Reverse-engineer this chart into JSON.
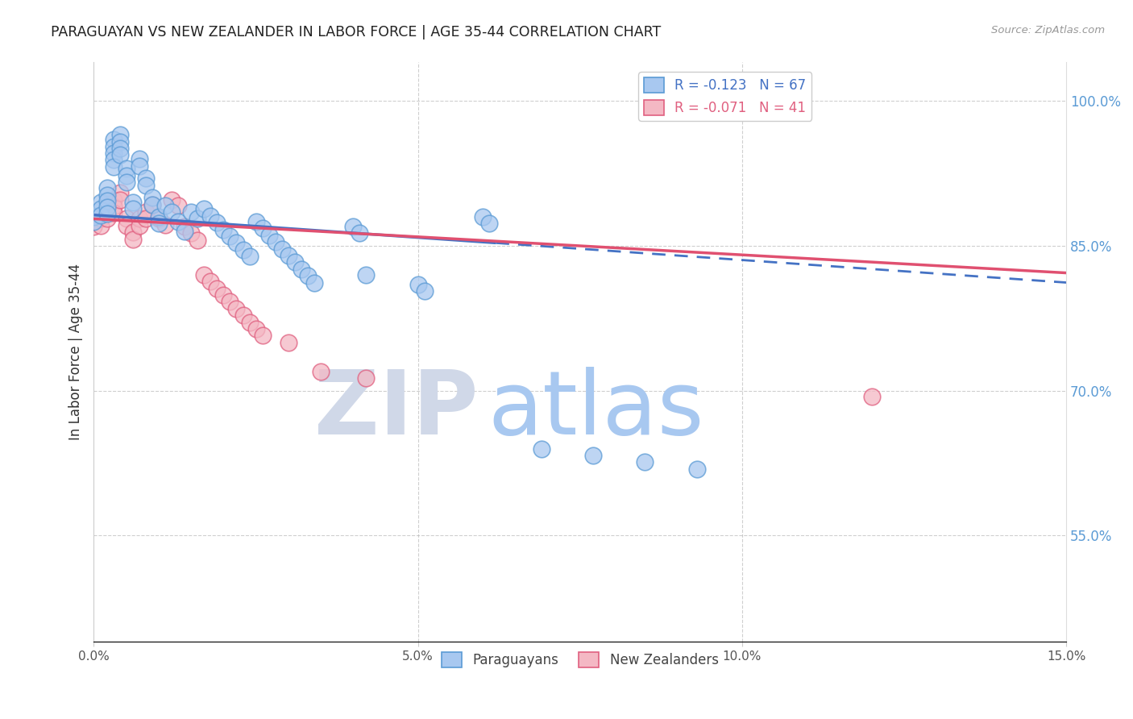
{
  "title": "PARAGUAYAN VS NEW ZEALANDER IN LABOR FORCE | AGE 35-44 CORRELATION CHART",
  "source": "Source: ZipAtlas.com",
  "ylabel": "In Labor Force | Age 35-44",
  "xlim": [
    0.0,
    0.15
  ],
  "ylim": [
    0.44,
    1.04
  ],
  "blue_fill": "#a8c8f0",
  "blue_edge": "#5b9bd5",
  "pink_fill": "#f4b8c4",
  "pink_edge": "#e06080",
  "blue_line_color": "#4472c4",
  "pink_line_color": "#e05070",
  "right_tick_color": "#5b9bd5",
  "grid_color": "#bbbbbb",
  "watermark_zip_color": "#d0d8e8",
  "watermark_atlas_color": "#a8c8f0",
  "legend_r_blue": "R = -0.123",
  "legend_n_blue": "N = 67",
  "legend_r_pink": "R = -0.071",
  "legend_n_pink": "N = 41",
  "blue_scatter_x": [
    0.0,
    0.0,
    0.001,
    0.001,
    0.001,
    0.002,
    0.002,
    0.002,
    0.002,
    0.002,
    0.003,
    0.003,
    0.003,
    0.003,
    0.003,
    0.004,
    0.004,
    0.004,
    0.004,
    0.005,
    0.005,
    0.005,
    0.006,
    0.006,
    0.007,
    0.007,
    0.008,
    0.008,
    0.009,
    0.009,
    0.01,
    0.01,
    0.011,
    0.012,
    0.013,
    0.014,
    0.015,
    0.016,
    0.017,
    0.018,
    0.019,
    0.02,
    0.021,
    0.022,
    0.023,
    0.024,
    0.025,
    0.026,
    0.027,
    0.028,
    0.029,
    0.03,
    0.031,
    0.032,
    0.033,
    0.034,
    0.04,
    0.041,
    0.042,
    0.05,
    0.051,
    0.06,
    0.061,
    0.069,
    0.077,
    0.085,
    0.093
  ],
  "blue_scatter_y": [
    0.88,
    0.875,
    0.895,
    0.888,
    0.882,
    0.91,
    0.903,
    0.897,
    0.89,
    0.883,
    0.96,
    0.953,
    0.946,
    0.939,
    0.932,
    0.965,
    0.958,
    0.951,
    0.944,
    0.93,
    0.923,
    0.916,
    0.895,
    0.888,
    0.94,
    0.933,
    0.92,
    0.913,
    0.9,
    0.893,
    0.88,
    0.873,
    0.892,
    0.885,
    0.875,
    0.865,
    0.885,
    0.878,
    0.888,
    0.881,
    0.874,
    0.867,
    0.86,
    0.853,
    0.846,
    0.839,
    0.875,
    0.868,
    0.861,
    0.854,
    0.847,
    0.84,
    0.833,
    0.826,
    0.819,
    0.812,
    0.87,
    0.863,
    0.82,
    0.81,
    0.803,
    0.88,
    0.873,
    0.64,
    0.633,
    0.626,
    0.619
  ],
  "pink_scatter_x": [
    0.0,
    0.001,
    0.001,
    0.002,
    0.002,
    0.002,
    0.003,
    0.003,
    0.003,
    0.004,
    0.004,
    0.005,
    0.005,
    0.006,
    0.006,
    0.007,
    0.007,
    0.008,
    0.008,
    0.009,
    0.01,
    0.011,
    0.012,
    0.013,
    0.014,
    0.015,
    0.016,
    0.017,
    0.018,
    0.019,
    0.02,
    0.021,
    0.022,
    0.023,
    0.024,
    0.025,
    0.026,
    0.03,
    0.035,
    0.042,
    0.12
  ],
  "pink_scatter_y": [
    0.87,
    0.878,
    0.871,
    0.892,
    0.885,
    0.878,
    0.898,
    0.891,
    0.884,
    0.905,
    0.898,
    0.878,
    0.871,
    0.864,
    0.857,
    0.878,
    0.871,
    0.885,
    0.878,
    0.893,
    0.878,
    0.872,
    0.898,
    0.892,
    0.87,
    0.863,
    0.856,
    0.82,
    0.813,
    0.806,
    0.799,
    0.792,
    0.785,
    0.778,
    0.771,
    0.764,
    0.757,
    0.75,
    0.72,
    0.713,
    0.694
  ],
  "blue_trend_x0": 0.0,
  "blue_trend_x_solid_end": 0.062,
  "blue_trend_x1": 0.15,
  "blue_trend_y0": 0.882,
  "blue_trend_y1": 0.812,
  "pink_trend_x0": 0.0,
  "pink_trend_x1": 0.15,
  "pink_trend_y0": 0.878,
  "pink_trend_y1": 0.822
}
